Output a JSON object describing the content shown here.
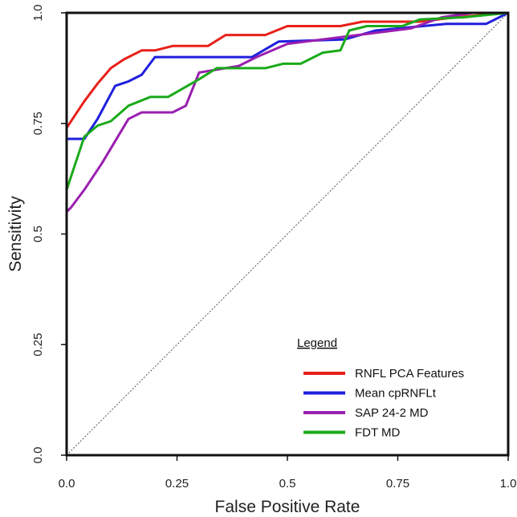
{
  "chart_data": {
    "type": "line",
    "xlabel": "False Positive Rate",
    "ylabel": "Sensitivity",
    "xlim": [
      0,
      1
    ],
    "ylim": [
      0,
      1
    ],
    "x_ticks": [
      {
        "value": 0.0,
        "label": "0.0"
      },
      {
        "value": 0.25,
        "label": "0.25"
      },
      {
        "value": 0.5,
        "label": "0.5"
      },
      {
        "value": 0.75,
        "label": "0.75"
      },
      {
        "value": 1.0,
        "label": "1.0"
      }
    ],
    "y_ticks": [
      {
        "value": 0.0,
        "label": "0.0"
      },
      {
        "value": 0.25,
        "label": "0.25"
      },
      {
        "value": 0.5,
        "label": "0.5"
      },
      {
        "value": 0.75,
        "label": "0.75"
      },
      {
        "value": 1.0,
        "label": "1.0"
      }
    ],
    "grid": false,
    "legend": {
      "title": "Legend",
      "position": "bottom-right"
    },
    "diagonal_reference": true,
    "series": [
      {
        "name": "RNFL PCA Features",
        "color": "#e8201a",
        "points": [
          [
            0,
            0
          ],
          [
            0,
            0.74
          ],
          [
            0.02,
            0.77
          ],
          [
            0.04,
            0.8
          ],
          [
            0.07,
            0.84
          ],
          [
            0.1,
            0.875
          ],
          [
            0.13,
            0.895
          ],
          [
            0.17,
            0.915
          ],
          [
            0.2,
            0.915
          ],
          [
            0.24,
            0.925
          ],
          [
            0.32,
            0.925
          ],
          [
            0.36,
            0.95
          ],
          [
            0.45,
            0.95
          ],
          [
            0.5,
            0.97
          ],
          [
            0.62,
            0.97
          ],
          [
            0.67,
            0.98
          ],
          [
            0.8,
            0.98
          ],
          [
            0.88,
            0.99
          ],
          [
            1,
            1
          ]
        ]
      },
      {
        "name": "Mean cpRNFLt",
        "color": "#1f1fdd",
        "points": [
          [
            0,
            0
          ],
          [
            0,
            0.715
          ],
          [
            0.04,
            0.715
          ],
          [
            0.07,
            0.76
          ],
          [
            0.11,
            0.835
          ],
          [
            0.14,
            0.845
          ],
          [
            0.17,
            0.86
          ],
          [
            0.2,
            0.9
          ],
          [
            0.42,
            0.9
          ],
          [
            0.48,
            0.935
          ],
          [
            0.63,
            0.94
          ],
          [
            0.7,
            0.96
          ],
          [
            0.86,
            0.975
          ],
          [
            0.95,
            0.975
          ],
          [
            1,
            1
          ]
        ]
      },
      {
        "name": "SAP 24-2 MD",
        "color": "#9a1fb0",
        "points": [
          [
            0,
            0
          ],
          [
            0,
            0.55
          ],
          [
            0.01,
            0.56
          ],
          [
            0.04,
            0.6
          ],
          [
            0.08,
            0.66
          ],
          [
            0.11,
            0.71
          ],
          [
            0.14,
            0.76
          ],
          [
            0.17,
            0.775
          ],
          [
            0.24,
            0.775
          ],
          [
            0.27,
            0.79
          ],
          [
            0.3,
            0.865
          ],
          [
            0.33,
            0.87
          ],
          [
            0.39,
            0.88
          ],
          [
            0.43,
            0.9
          ],
          [
            0.5,
            0.93
          ],
          [
            0.58,
            0.94
          ],
          [
            0.66,
            0.95
          ],
          [
            0.78,
            0.965
          ],
          [
            0.85,
            0.99
          ],
          [
            0.92,
            1
          ],
          [
            1,
            1
          ]
        ]
      },
      {
        "name": "FDT MD",
        "color": "#1aaa1a",
        "points": [
          [
            0,
            0
          ],
          [
            0,
            0.6
          ],
          [
            0.04,
            0.72
          ],
          [
            0.07,
            0.745
          ],
          [
            0.1,
            0.755
          ],
          [
            0.14,
            0.79
          ],
          [
            0.19,
            0.81
          ],
          [
            0.23,
            0.81
          ],
          [
            0.3,
            0.85
          ],
          [
            0.34,
            0.875
          ],
          [
            0.45,
            0.875
          ],
          [
            0.49,
            0.885
          ],
          [
            0.53,
            0.885
          ],
          [
            0.58,
            0.91
          ],
          [
            0.62,
            0.915
          ],
          [
            0.64,
            0.96
          ],
          [
            0.68,
            0.97
          ],
          [
            0.76,
            0.97
          ],
          [
            0.8,
            0.985
          ],
          [
            0.9,
            0.99
          ],
          [
            1,
            1
          ]
        ]
      }
    ]
  }
}
